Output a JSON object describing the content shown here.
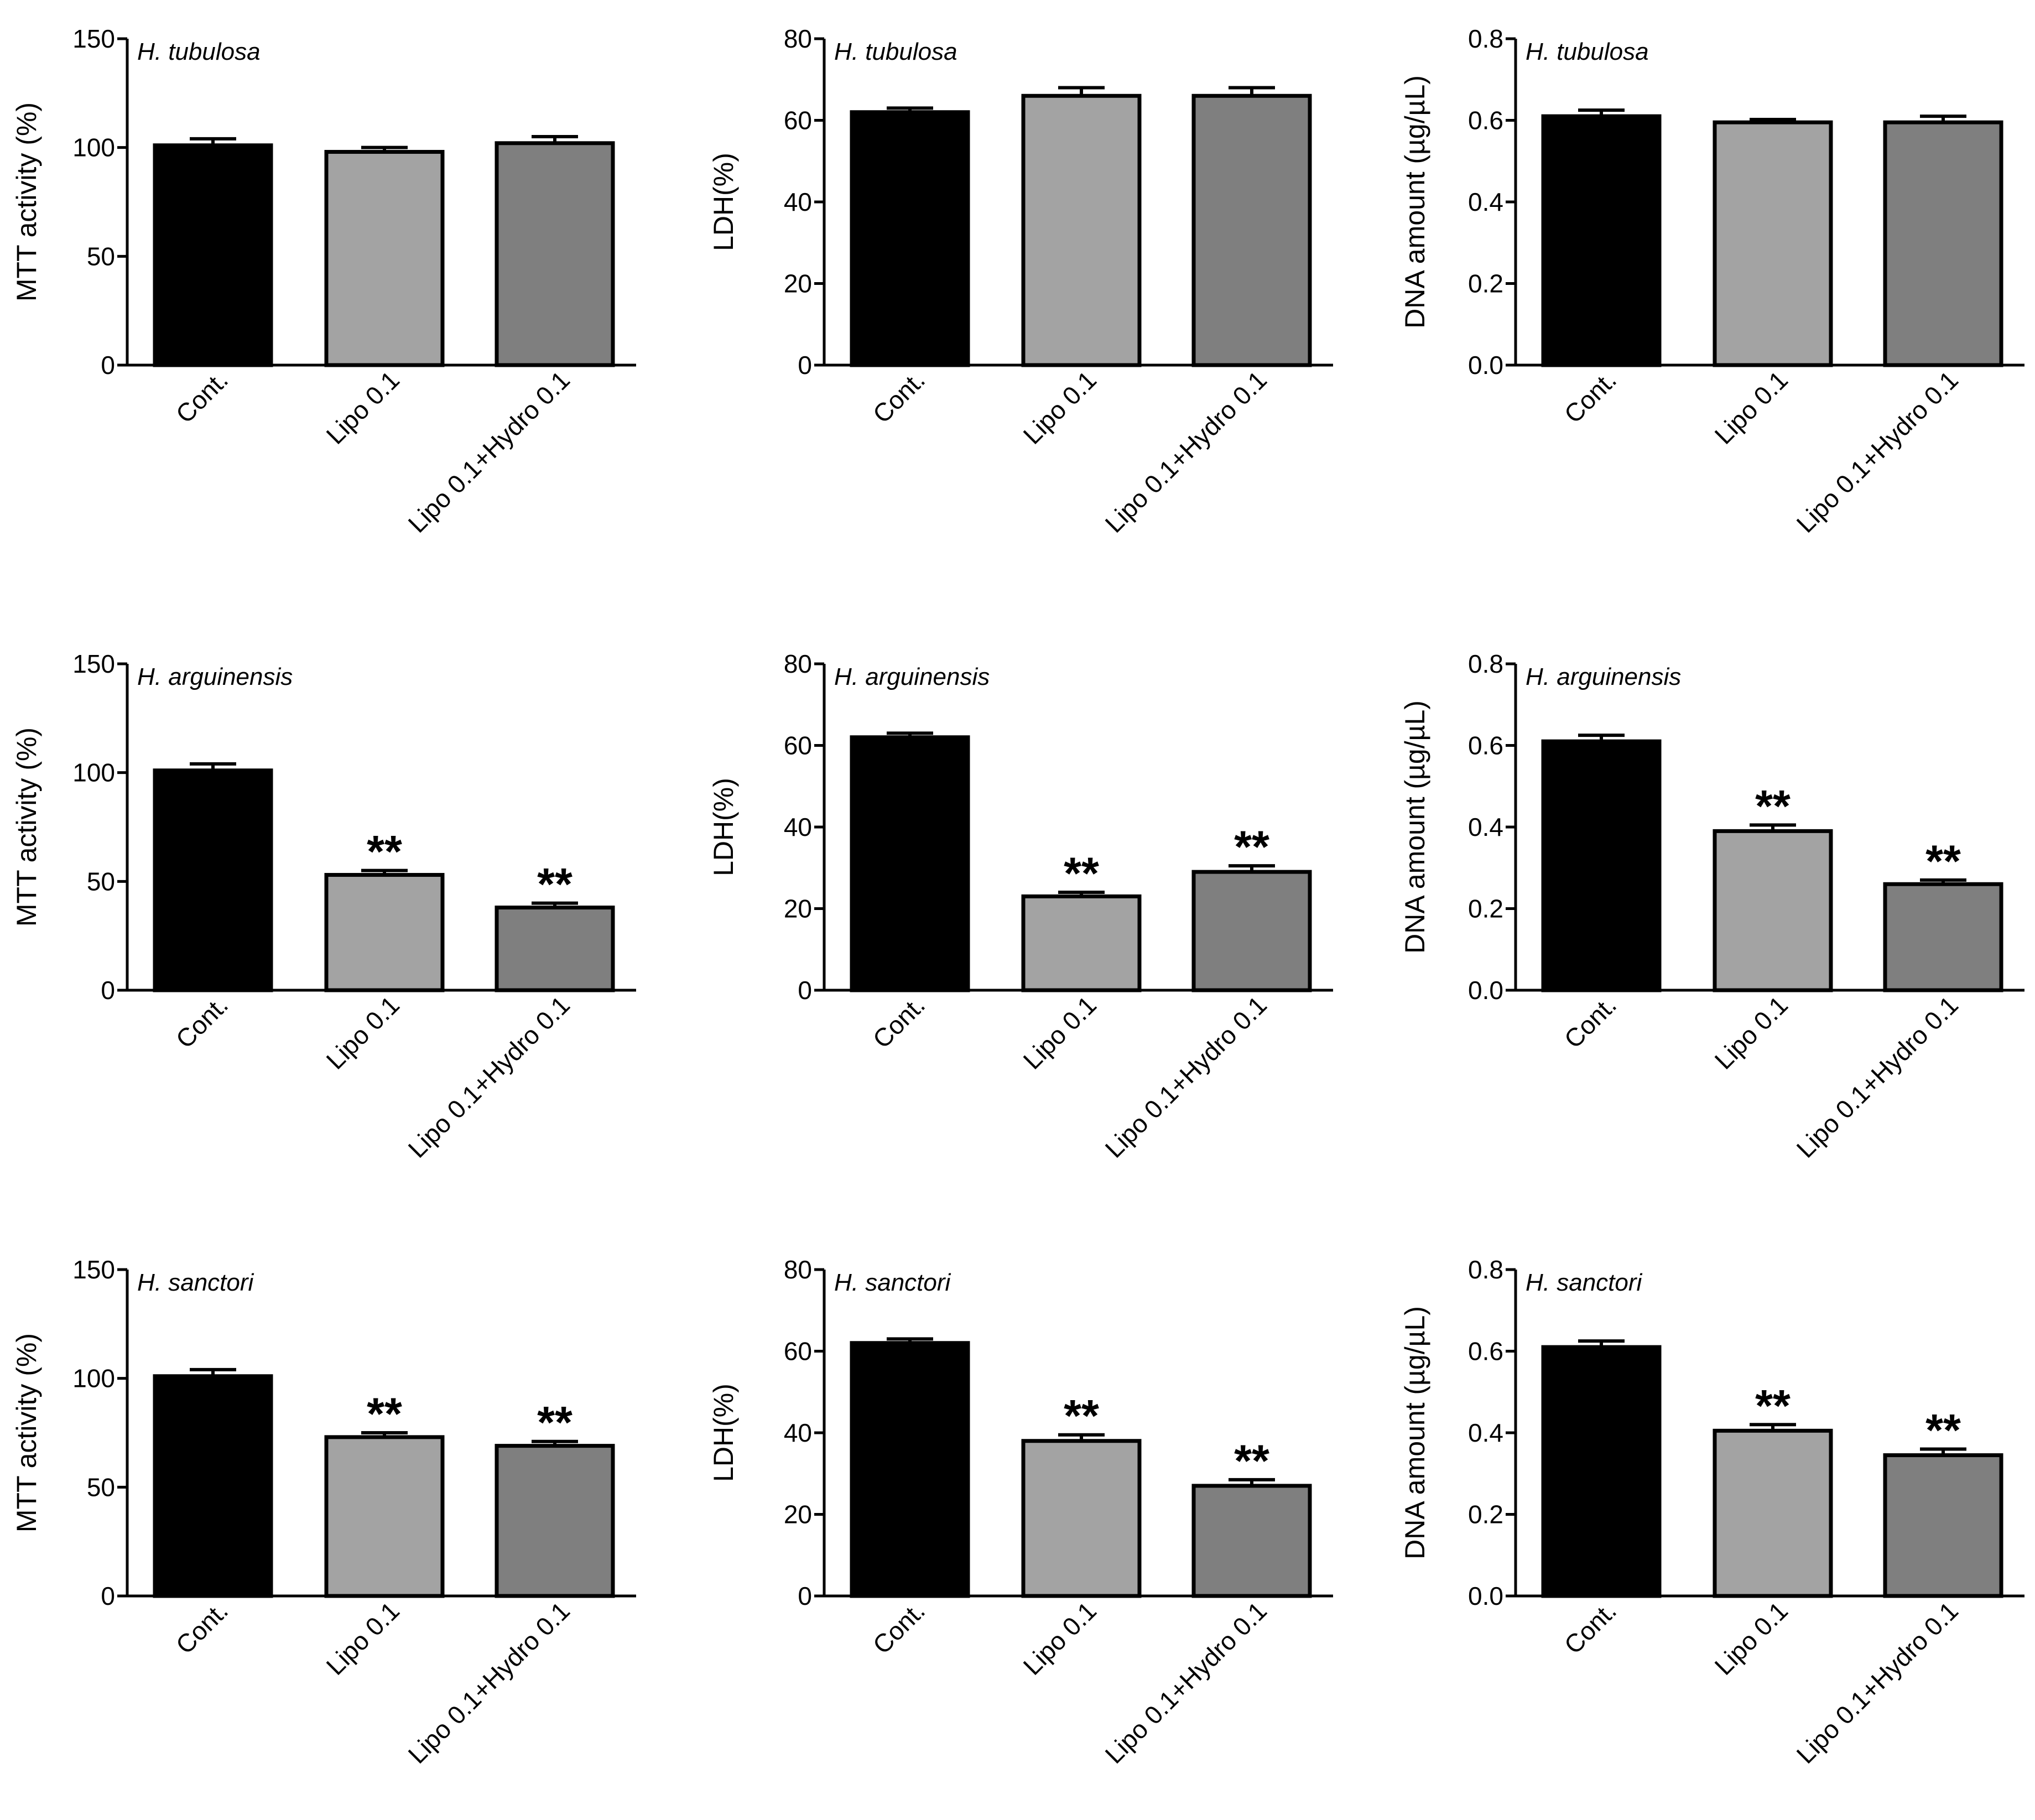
{
  "colors": {
    "cont": "#000000",
    "lipo": "#a3a3a3",
    "lipo_hydro": "#7f7f7f",
    "axis": "#000000"
  },
  "chart_data": [
    {
      "type": "bar",
      "title": "H. tubulosa",
      "ylabel": "MTT activity (%)",
      "ylim": [
        0,
        150
      ],
      "yticks": [
        "0",
        "50",
        "100",
        "150"
      ],
      "categories": [
        "Cont.",
        "Lipo 0.1",
        "Lipo 0.1+Hydro 0.1"
      ],
      "values": [
        101,
        98,
        102
      ],
      "errors": [
        3,
        2,
        3
      ],
      "annotations": [
        "",
        "",
        ""
      ]
    },
    {
      "type": "bar",
      "title": "H. tubulosa",
      "ylabel": "LDH(%)",
      "ylim": [
        0,
        80
      ],
      "yticks": [
        "0",
        "20",
        "40",
        "60",
        "80"
      ],
      "categories": [
        "Cont.",
        "Lipo 0.1",
        "Lipo 0.1+Hydro 0.1"
      ],
      "values": [
        62,
        66,
        66
      ],
      "errors": [
        1,
        2,
        2
      ],
      "annotations": [
        "",
        "",
        ""
      ]
    },
    {
      "type": "bar",
      "title": "H. tubulosa",
      "ylabel": "DNA amount (µg/µL)",
      "ylim": [
        0,
        0.8
      ],
      "yticks": [
        "0.0",
        "0.2",
        "0.4",
        "0.6",
        "0.8"
      ],
      "categories": [
        "Cont.",
        "Lipo 0.1",
        "Lipo 0.1+Hydro 0.1"
      ],
      "values": [
        0.61,
        0.595,
        0.595
      ],
      "errors": [
        0.015,
        0.007,
        0.015
      ],
      "annotations": [
        "",
        "",
        ""
      ]
    },
    {
      "type": "bar",
      "title": "H. arguinensis",
      "ylabel": "MTT activity (%)",
      "ylim": [
        0,
        150
      ],
      "yticks": [
        "0",
        "50",
        "100",
        "150"
      ],
      "categories": [
        "Cont.",
        "Lipo 0.1",
        "Lipo 0.1+Hydro 0.1"
      ],
      "values": [
        101,
        53,
        38
      ],
      "errors": [
        3,
        2,
        2
      ],
      "annotations": [
        "",
        "**",
        "**"
      ]
    },
    {
      "type": "bar",
      "title": "H. arguinensis",
      "ylabel": "LDH(%)",
      "ylim": [
        0,
        80
      ],
      "yticks": [
        "0",
        "20",
        "40",
        "60",
        "80"
      ],
      "categories": [
        "Cont.",
        "Lipo 0.1",
        "Lipo 0.1+Hydro 0.1"
      ],
      "values": [
        62,
        23,
        29
      ],
      "errors": [
        1,
        1,
        1.5
      ],
      "annotations": [
        "",
        "**",
        "**"
      ]
    },
    {
      "type": "bar",
      "title": "H. arguinensis",
      "ylabel": "DNA amount (µg/µL)",
      "ylim": [
        0,
        0.8
      ],
      "yticks": [
        "0.0",
        "0.2",
        "0.4",
        "0.6",
        "0.8"
      ],
      "categories": [
        "Cont.",
        "Lipo 0.1",
        "Lipo 0.1+Hydro 0.1"
      ],
      "values": [
        0.61,
        0.39,
        0.26
      ],
      "errors": [
        0.015,
        0.015,
        0.01
      ],
      "annotations": [
        "",
        "**",
        "**"
      ]
    },
    {
      "type": "bar",
      "title": "H. sanctori",
      "ylabel": "MTT activity (%)",
      "ylim": [
        0,
        150
      ],
      "yticks": [
        "0",
        "50",
        "100",
        "150"
      ],
      "categories": [
        "Cont.",
        "Lipo 0.1",
        "Lipo 0.1+Hydro 0.1"
      ],
      "values": [
        101,
        73,
        69
      ],
      "errors": [
        3,
        2,
        2
      ],
      "annotations": [
        "",
        "**",
        "**"
      ]
    },
    {
      "type": "bar",
      "title": "H. sanctori",
      "ylabel": "LDH(%)",
      "ylim": [
        0,
        80
      ],
      "yticks": [
        "0",
        "20",
        "40",
        "60",
        "80"
      ],
      "categories": [
        "Cont.",
        "Lipo 0.1",
        "Lipo 0.1+Hydro 0.1"
      ],
      "values": [
        62,
        38,
        27
      ],
      "errors": [
        1,
        1.5,
        1.5
      ],
      "annotations": [
        "",
        "**",
        "**"
      ]
    },
    {
      "type": "bar",
      "title": "H. sanctori",
      "ylabel": "DNA amount (µg/µL)",
      "ylim": [
        0,
        0.8
      ],
      "yticks": [
        "0.0",
        "0.2",
        "0.4",
        "0.6",
        "0.8"
      ],
      "categories": [
        "Cont.",
        "Lipo 0.1",
        "Lipo 0.1+Hydro 0.1"
      ],
      "values": [
        0.61,
        0.405,
        0.345
      ],
      "errors": [
        0.015,
        0.015,
        0.015
      ],
      "annotations": [
        "",
        "**",
        "**"
      ]
    }
  ]
}
